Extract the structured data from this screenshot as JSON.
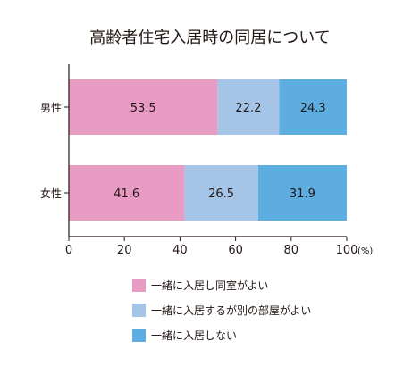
{
  "chart_data": {
    "type": "bar",
    "orientation": "horizontal",
    "stacked": true,
    "title": "高齢者住宅入居時の同居について",
    "categories": [
      "男性",
      "女性"
    ],
    "series": [
      {
        "name": "一緒に入居し同室がよい",
        "color": "#e99cc3",
        "values": [
          53.5,
          41.6
        ]
      },
      {
        "name": "一緒に入居するが別の部屋がよい",
        "color": "#a4c5e7",
        "values": [
          22.2,
          26.5
        ]
      },
      {
        "name": "一緒に入居しない",
        "color": "#5dade1",
        "values": [
          24.3,
          31.9
        ]
      }
    ],
    "xlim": [
      0,
      100
    ],
    "xticks": [
      0,
      20,
      40,
      60,
      80,
      100
    ],
    "xunit": "(%)",
    "grid": false,
    "legend_position": "bottom"
  }
}
